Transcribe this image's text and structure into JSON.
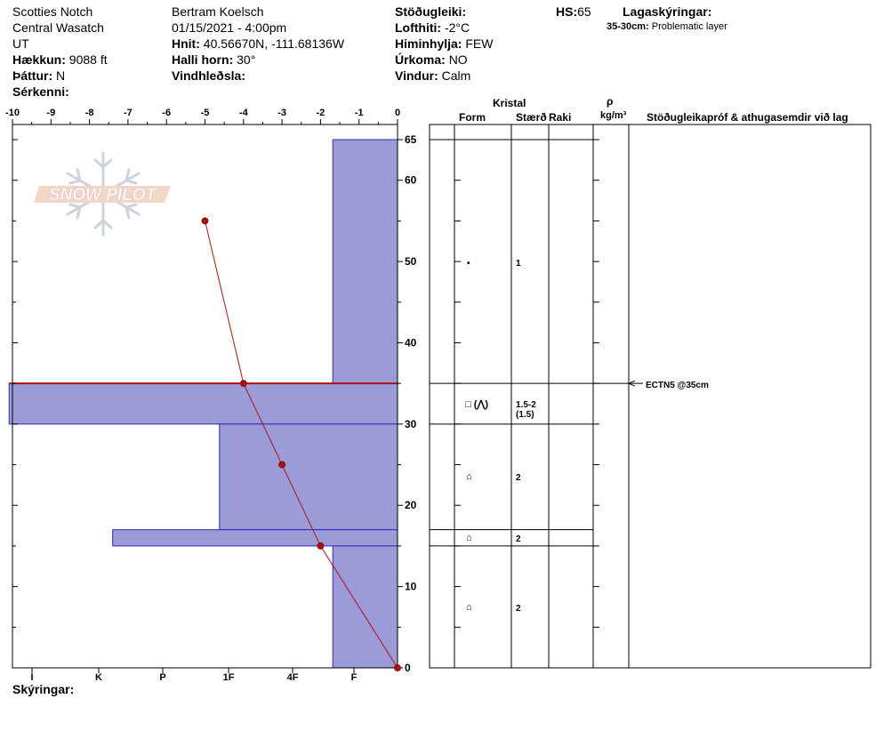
{
  "header": {
    "location": "Scotties Notch",
    "range": "Central Wasatch",
    "state": "UT",
    "elevation_label": "Hækkun:",
    "elevation_value": "9088 ft",
    "aspect_label": "Þáttur:",
    "aspect_value": "N",
    "features_label": "Sérkenni:",
    "observer": "Bertram Koelsch",
    "datetime": "01/15/2021 - 4:00pm",
    "coords_label": "Hnit:",
    "coords_value": "40.56670N, -111.68136W",
    "slope_label": "Halli horn:",
    "slope_value": "30°",
    "wind_loading_label": "Vindhleðsla:",
    "stability_label": "Stöðugleiki:",
    "air_temp_label": "Lofthiti:",
    "air_temp_value": "-2°C",
    "sky_label": "Himinhylja:",
    "sky_value": "FEW",
    "precip_label": "Úrkoma:",
    "precip_value": "NO",
    "wind_label": "Vindur:",
    "wind_value": "Calm",
    "hs_label": "HS:",
    "hs_value": "65",
    "layer_notes_label": "Lagaskýringar:",
    "layer_note_range": "35-30cm:",
    "layer_note_text": "Problematic layer"
  },
  "footer": {
    "notes_label": "Skýringar:"
  },
  "logo": {
    "text": "SNOW PILOT"
  },
  "table": {
    "crystal_label": "Kristal",
    "form_label": "Form",
    "size_label": "Stærð",
    "moisture_label": "Raki",
    "rho_label": "ρ",
    "density_unit": "kg/m³",
    "tests_label": "Stöðugleikapróf & athugasemdir við lag",
    "rows": [
      {
        "form": "•",
        "size": "1"
      },
      {
        "form": "□ (⋀)",
        "size": "1.5-2",
        "size2": "(1.5)"
      },
      {
        "form": "⌂",
        "size": "2"
      },
      {
        "form": "⌂",
        "size": "2"
      },
      {
        "form": "⌂",
        "size": "2"
      }
    ],
    "test_result": "ECTN5 @35cm"
  },
  "chart_data": {
    "type": "snow-profile",
    "temp_axis_ticks": [
      "-10",
      "-9",
      "-8",
      "-7",
      "-6",
      "-5",
      "-4",
      "-3",
      "-2",
      "-1",
      "0"
    ],
    "hardness_ticks": [
      "I",
      "K",
      "P",
      "1F",
      "4F",
      "F"
    ],
    "height_ticks": [
      "0",
      "10",
      "20",
      "30",
      "40",
      "50",
      "60",
      "65"
    ],
    "height_range_cm": [
      0,
      65
    ],
    "temp_range_c": [
      -10,
      0
    ],
    "hardness_layers": [
      {
        "bottom": 35,
        "top": 65,
        "value": 1
      },
      {
        "bottom": 30,
        "top": 35,
        "value": 6
      },
      {
        "bottom": 17,
        "top": 30,
        "value": 2.75
      },
      {
        "bottom": 15,
        "top": 17,
        "value": 4.4
      },
      {
        "bottom": 0,
        "top": 15,
        "value": 1
      }
    ],
    "temperature_profile": [
      {
        "height": 55,
        "temp": -5
      },
      {
        "height": 35,
        "temp": -4
      },
      {
        "height": 25,
        "temp": -3
      },
      {
        "height": 15,
        "temp": -2
      },
      {
        "height": 0,
        "temp": 0
      }
    ],
    "problem_layer_height": 35,
    "colors": {
      "hardness_fill": "#9b9bd8",
      "hardness_stroke": "#2c2cb0",
      "temp_line": "#b01010",
      "problem_layer": "#b01010"
    }
  }
}
